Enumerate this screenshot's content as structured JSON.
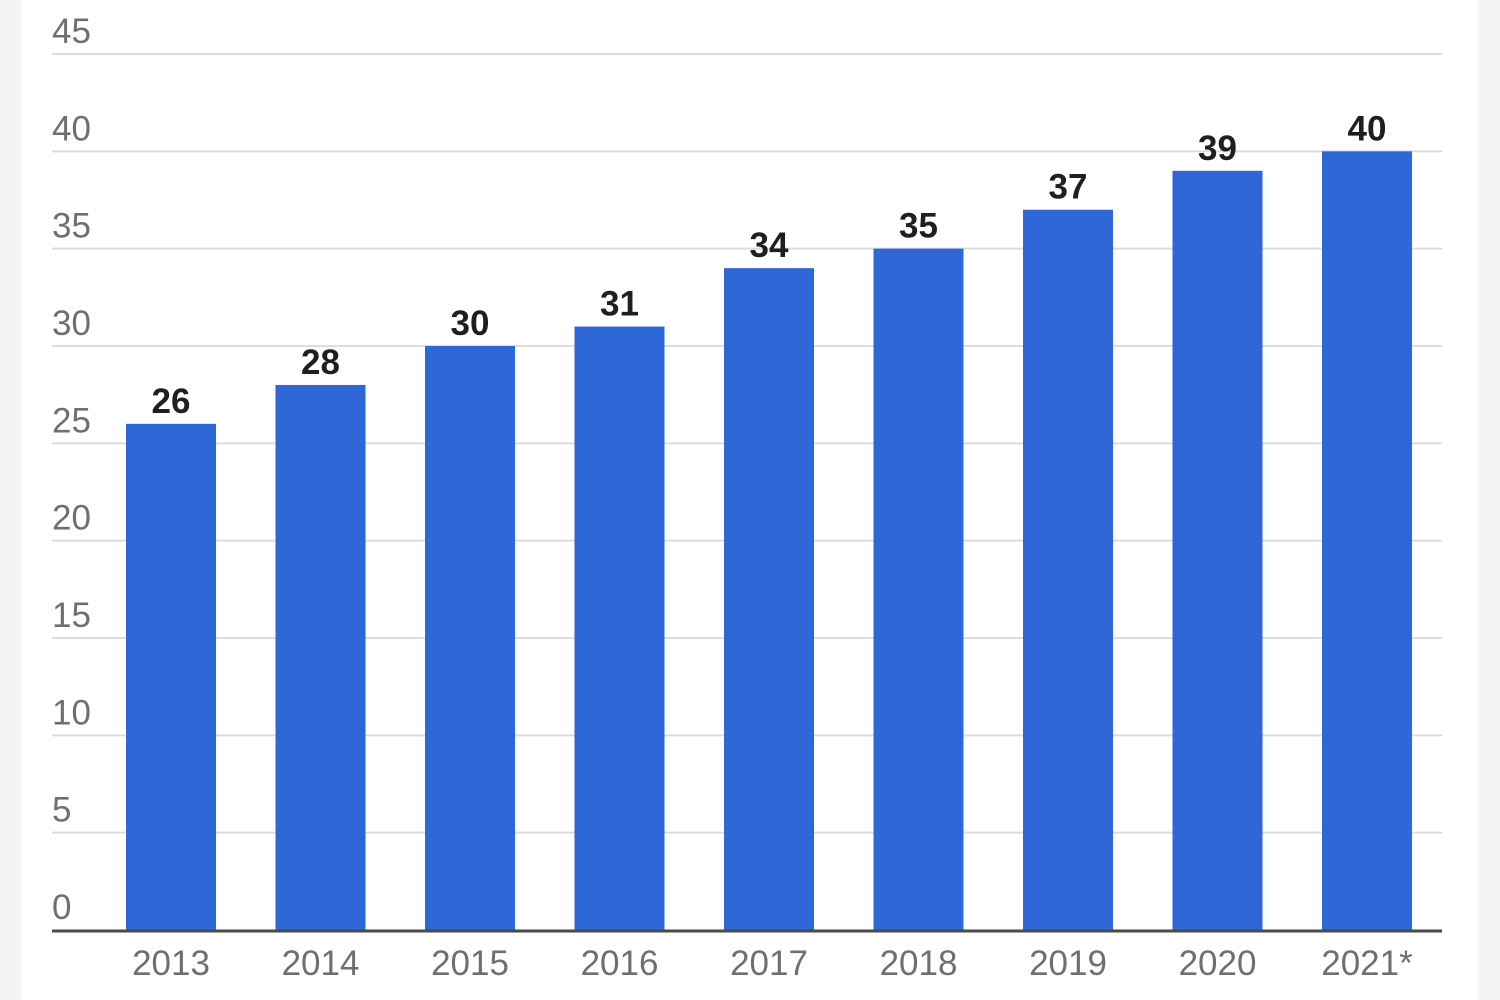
{
  "chart_data": {
    "type": "bar",
    "categories": [
      "2013",
      "2014",
      "2015",
      "2016",
      "2017",
      "2018",
      "2019",
      "2020",
      "2021*"
    ],
    "values": [
      26,
      28,
      30,
      31,
      34,
      35,
      37,
      39,
      40
    ],
    "data_labels": [
      "26",
      "28",
      "30",
      "31",
      "34",
      "35",
      "37",
      "39",
      "40"
    ],
    "ylim": [
      0,
      45
    ],
    "yticks": [
      "0",
      "5",
      "10",
      "15",
      "20",
      "25",
      "30",
      "35",
      "40",
      "45"
    ],
    "title": "",
    "xlabel": "",
    "ylabel": "",
    "grid": "horizontal",
    "bar_color": "#2f67d8"
  }
}
